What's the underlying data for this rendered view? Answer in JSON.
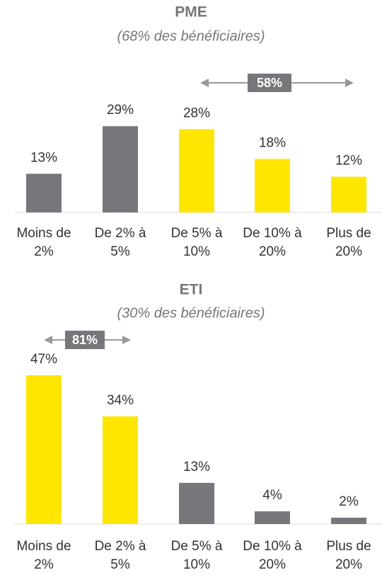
{
  "chart_data": [
    {
      "type": "bar",
      "title": "PME",
      "subtitle": "(68% des bénéficiaires)",
      "annotation": "58%",
      "categories": [
        "Moins de 2%",
        "De 2% à 5%",
        "De 5% à 10%",
        "De 10% à 20%",
        "Plus de 20%"
      ],
      "values": [
        13,
        29,
        28,
        18,
        12
      ],
      "value_labels": [
        "13%",
        "29%",
        "28%",
        "18%",
        "12%"
      ],
      "colors": [
        "#77767b",
        "#77767b",
        "#ffe600",
        "#ffe600",
        "#ffe600"
      ]
    },
    {
      "type": "bar",
      "title": "ETI",
      "subtitle": "(30% des bénéficiaires)",
      "annotation": "81%",
      "categories": [
        "Moins de 2%",
        "De 2% à 5%",
        "De 5% à 10%",
        "De 10% à 20%",
        "Plus de 20%"
      ],
      "values": [
        47,
        34,
        13,
        4,
        2
      ],
      "value_labels": [
        "47%",
        "34%",
        "13%",
        "4%",
        "2%"
      ],
      "colors": [
        "#ffe600",
        "#ffe600",
        "#77767b",
        "#77767b",
        "#77767b"
      ]
    }
  ]
}
